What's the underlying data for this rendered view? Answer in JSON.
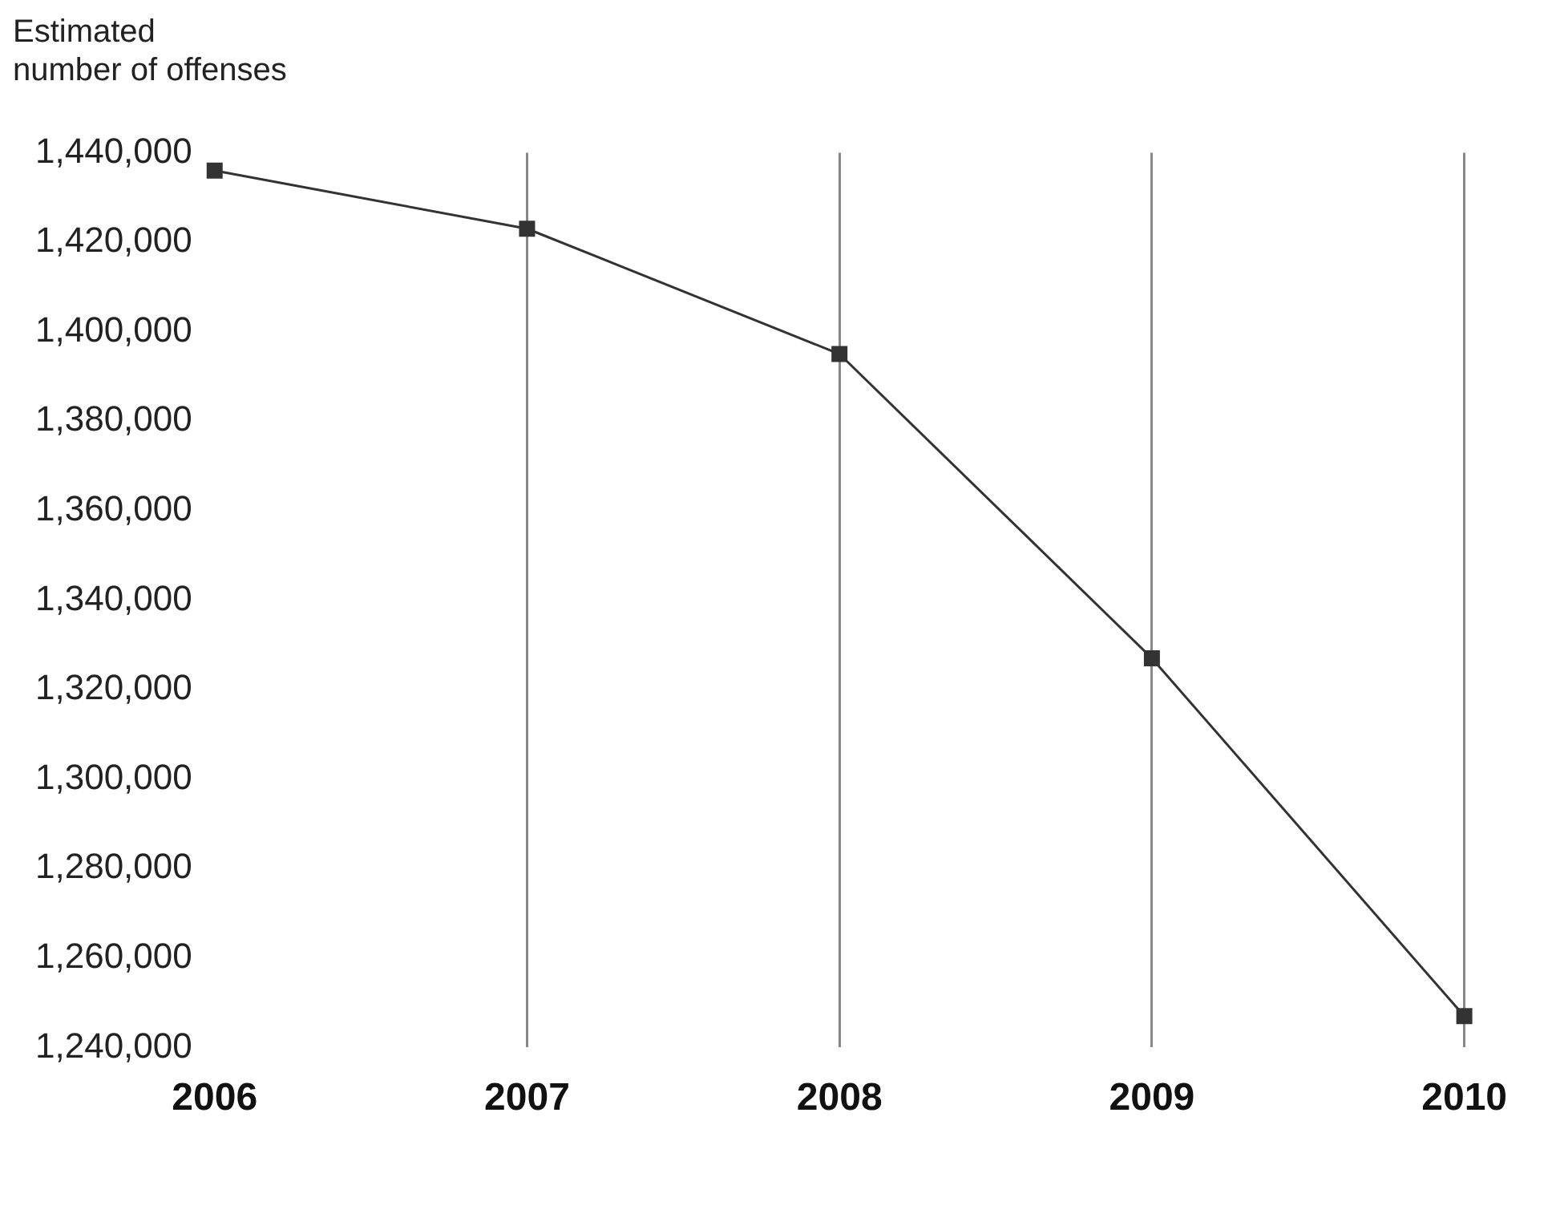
{
  "chart_data": {
    "type": "line",
    "ylabel": "Estimated\nnumber of offenses",
    "categories": [
      "2006",
      "2007",
      "2008",
      "2009",
      "2010"
    ],
    "series": [
      {
        "color": "#333333",
        "values": [
          1436000,
          1423000,
          1395000,
          1327000,
          1247000
        ]
      }
    ],
    "ylim": [
      1240000,
      1440000
    ],
    "yticks": [
      {
        "value": 1240000,
        "label": "1,240,000"
      },
      {
        "value": 1260000,
        "label": "1,260,000"
      },
      {
        "value": 1280000,
        "label": "1,280,000"
      },
      {
        "value": 1300000,
        "label": "1,300,000"
      },
      {
        "value": 1320000,
        "label": "1,320,000"
      },
      {
        "value": 1340000,
        "label": "1,340,000"
      },
      {
        "value": 1360000,
        "label": "1,360,000"
      },
      {
        "value": 1380000,
        "label": "1,380,000"
      },
      {
        "value": 1400000,
        "label": "1,400,000"
      },
      {
        "value": 1420000,
        "label": "1,420,000"
      },
      {
        "value": 1440000,
        "label": "1,440,000"
      }
    ],
    "grid": "x",
    "legend": false,
    "marker": "square",
    "line_style": "solid"
  }
}
